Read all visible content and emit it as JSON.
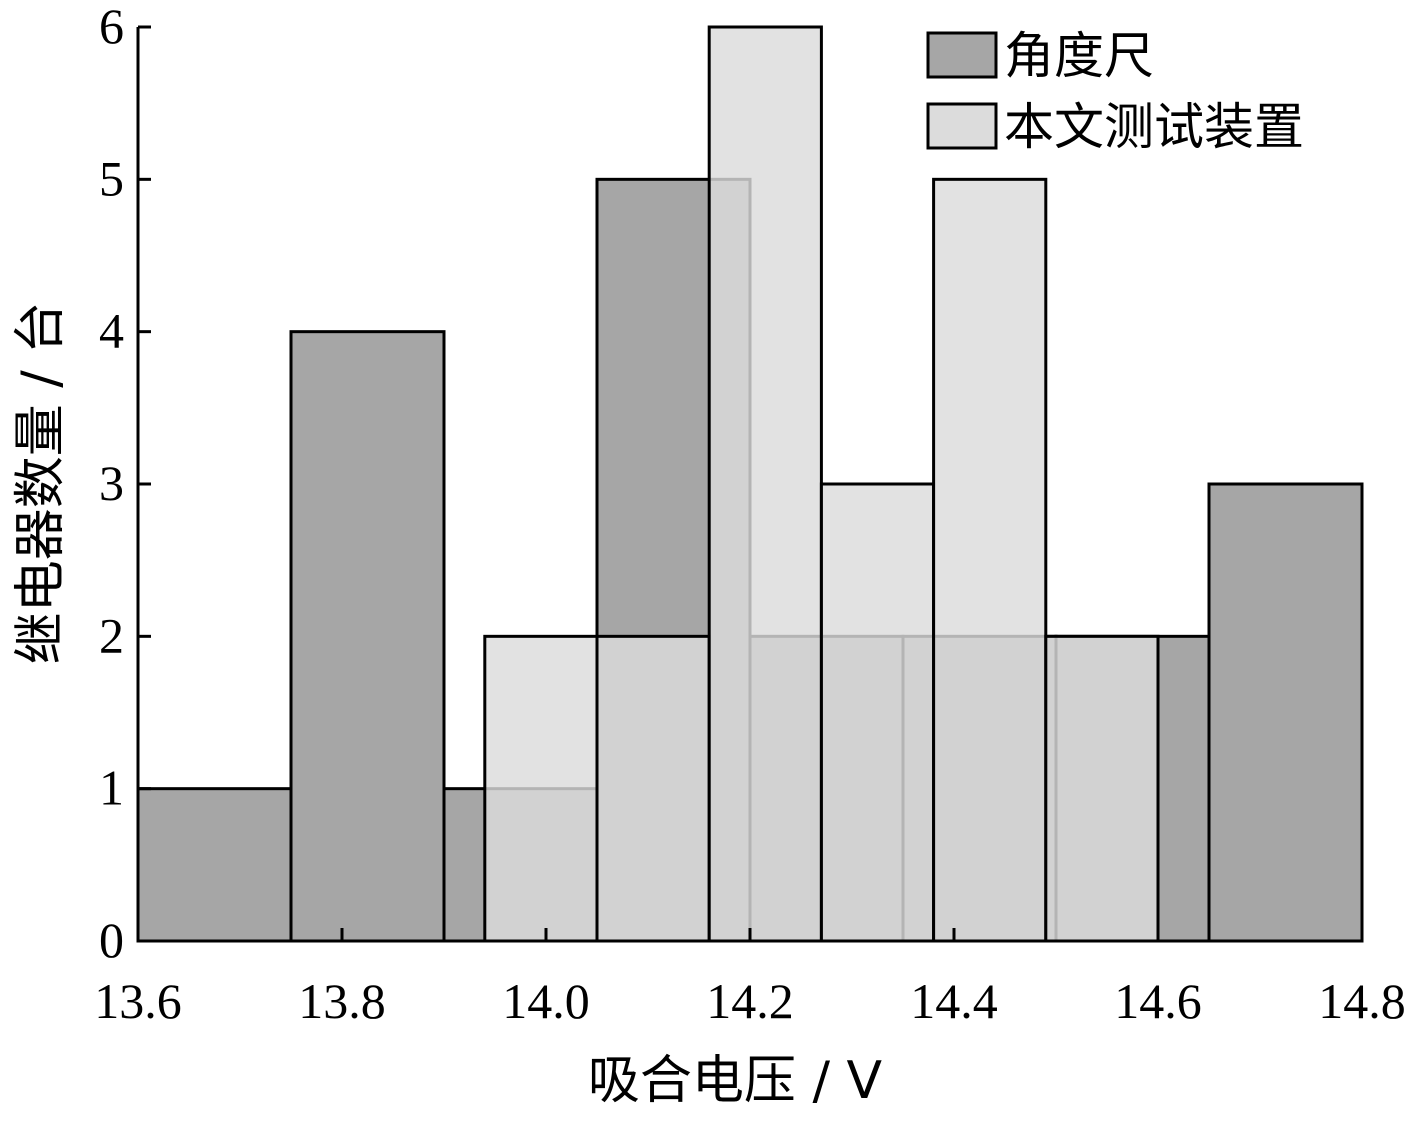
{
  "chart_data": {
    "type": "bar",
    "subtype": "overlaid-histogram",
    "xlabel": "吸合电压 / V",
    "ylabel": "继电器数量 / 台",
    "xlim": [
      13.6,
      14.8
    ],
    "ylim": [
      0,
      6
    ],
    "x_ticks": [
      "13.6",
      "13.8",
      "14.0",
      "14.2",
      "14.4",
      "14.6",
      "14.8"
    ],
    "y_ticks": [
      "0",
      "1",
      "2",
      "3",
      "4",
      "5",
      "6"
    ],
    "legend_position": "top-right",
    "series": [
      {
        "name": "角度尺",
        "color": "#a6a6a6",
        "bins": [
          {
            "x0": 13.6,
            "x1": 13.75,
            "count": 1
          },
          {
            "x0": 13.75,
            "x1": 13.9,
            "count": 4
          },
          {
            "x0": 13.9,
            "x1": 14.05,
            "count": 1
          },
          {
            "x0": 14.05,
            "x1": 14.2,
            "count": 5
          },
          {
            "x0": 14.2,
            "x1": 14.35,
            "count": 2
          },
          {
            "x0": 14.35,
            "x1": 14.5,
            "count": 2
          },
          {
            "x0": 14.5,
            "x1": 14.65,
            "count": 2
          },
          {
            "x0": 14.65,
            "x1": 14.8,
            "count": 3
          }
        ]
      },
      {
        "name": "本文测试装置",
        "color": "#dcdcdc",
        "bins": [
          {
            "x0": 13.94,
            "x1": 14.05,
            "count": 2
          },
          {
            "x0": 14.05,
            "x1": 14.16,
            "count": 2
          },
          {
            "x0": 14.16,
            "x1": 14.27,
            "count": 6
          },
          {
            "x0": 14.27,
            "x1": 14.38,
            "count": 3
          },
          {
            "x0": 14.38,
            "x1": 14.49,
            "count": 5
          },
          {
            "x0": 14.49,
            "x1": 14.6,
            "count": 2
          }
        ]
      }
    ]
  }
}
